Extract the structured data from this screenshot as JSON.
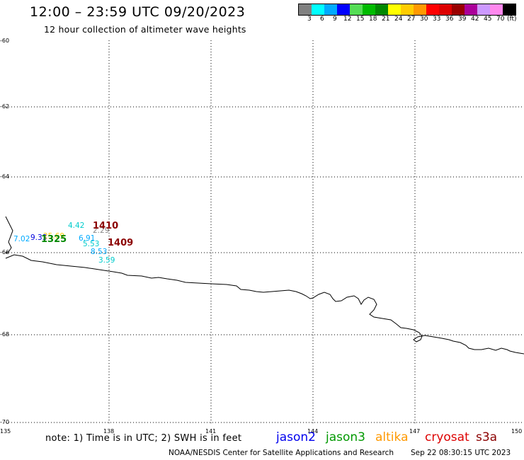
{
  "header": {
    "title": "12:00 – 23:59 UTC 09/20/2023",
    "subtitle": "12 hour collection of altimeter wave heights"
  },
  "legend": {
    "colors": [
      "#808080",
      "#00ffff",
      "#00aaff",
      "#0000ff",
      "#55dd55",
      "#00bb00",
      "#008800",
      "#ffff00",
      "#ffcc00",
      "#ff9900",
      "#ff0000",
      "#dd0000",
      "#990000",
      "#aa0099",
      "#cc99ff",
      "#ff88ee",
      "#000000"
    ],
    "labels": [
      "3",
      "6",
      "9",
      "12",
      "15",
      "18",
      "21",
      "24",
      "27",
      "30",
      "33",
      "36",
      "39",
      "42",
      "45",
      "70"
    ],
    "unit": "(ft)"
  },
  "axes": {
    "lat_labels": [
      "-60",
      "-62",
      "-64",
      "-66",
      "-68",
      "-70"
    ],
    "lon_labels": [
      "135",
      "138",
      "141",
      "144",
      "147",
      "150"
    ]
  },
  "observations": [
    {
      "value": "4.42",
      "color": "#00cccc"
    },
    {
      "value": "2.29",
      "color": "#888888"
    },
    {
      "value": "7.02",
      "color": "#00aaff"
    },
    {
      "value": "9.33",
      "color": "#0000dd"
    },
    {
      "value": "6.91",
      "color": "#00aaff"
    },
    {
      "value": "5.53",
      "color": "#00cccc"
    },
    {
      "value": "8.53",
      "color": "#00aaff"
    },
    {
      "value": "3.59",
      "color": "#00cccc"
    },
    {
      "value": "25.69",
      "color": "#ffcc00"
    }
  ],
  "pass_ids": [
    {
      "id": "1410",
      "color": "#8b0000"
    },
    {
      "id": "1409",
      "color": "#8b0000"
    },
    {
      "id": "1325",
      "color": "#008800"
    }
  ],
  "footer": {
    "note": "note: 1) Time is in UTC; 2) SWH is in feet",
    "satellites": [
      {
        "name": "jason2",
        "color": "#0000ee"
      },
      {
        "name": "jason3",
        "color": "#009900"
      },
      {
        "name": "altika",
        "color": "#ff9900"
      },
      {
        "name": "cryosat",
        "color": "#dd0000"
      },
      {
        "name": "s3a",
        "color": "#8b0000"
      }
    ],
    "credit": "NOAA/NESDIS Center for Satellite Applications and Research",
    "timestamp": "Sep 22 08:30:15 UTC 2023"
  }
}
